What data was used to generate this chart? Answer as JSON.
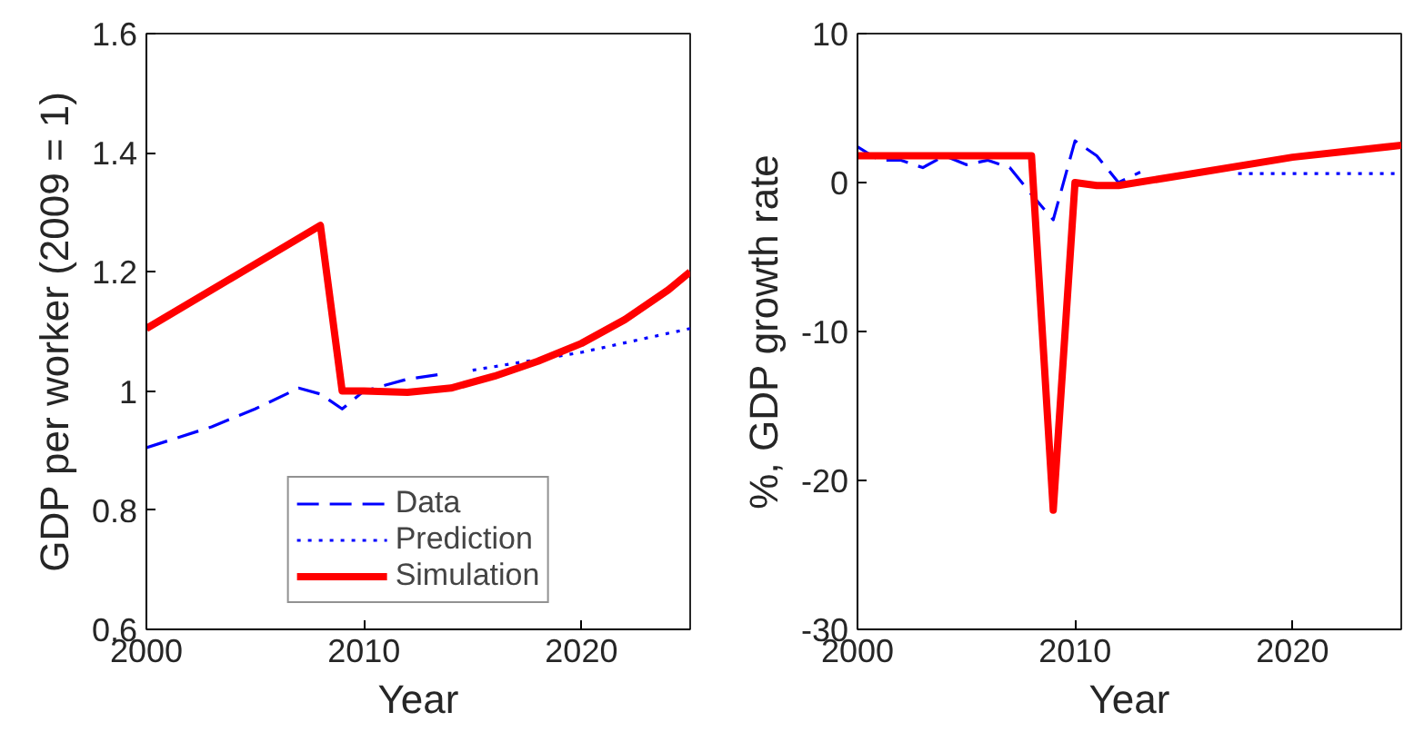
{
  "chart_data": [
    {
      "type": "line",
      "xlabel": "Year",
      "ylabel": "GDP per worker (2009 = 1)",
      "xlim": [
        2000,
        2025
      ],
      "xticks": [
        2000,
        2010,
        2020
      ],
      "ylim": [
        0.6,
        1.6
      ],
      "yticks": [
        {
          "value": 0.6,
          "label": "0.6"
        },
        {
          "value": 0.8,
          "label": "0.8"
        },
        {
          "value": 1,
          "label": "1"
        },
        {
          "value": 1.2,
          "label": "1.2"
        },
        {
          "value": 1.4,
          "label": "1.4"
        },
        {
          "value": 1.6,
          "label": "1.6"
        }
      ],
      "grid": false,
      "legend": "bottom",
      "series": [
        {
          "name": "Data",
          "color": "#0000ff",
          "line_style": "dashed",
          "x": [
            2000,
            2003,
            2005,
            2007,
            2008,
            2009,
            2010,
            2011,
            2012,
            2013.5
          ],
          "values": [
            0.905,
            0.94,
            0.97,
            1.005,
            0.995,
            0.97,
            1.0,
            1.01,
            1.02,
            1.028
          ]
        },
        {
          "name": "Prediction",
          "color": "#0000ff",
          "line_style": "dotted",
          "x": [
            2015,
            2020,
            2025
          ],
          "values": [
            1.035,
            1.065,
            1.105
          ]
        },
        {
          "name": "Simulation",
          "color": "#ff0000",
          "line_style": "solid",
          "x": [
            2000,
            2008,
            2009,
            2010,
            2012,
            2014,
            2016,
            2018,
            2020,
            2022,
            2024,
            2025
          ],
          "values": [
            1.105,
            1.278,
            1.0,
            1.0,
            0.998,
            1.005,
            1.025,
            1.05,
            1.08,
            1.12,
            1.17,
            1.2
          ]
        }
      ]
    },
    {
      "type": "line",
      "xlabel": "Year",
      "ylabel": "%, GDP growth rate",
      "xlim": [
        2000,
        2025
      ],
      "xticks": [
        2000,
        2010,
        2020
      ],
      "ylim": [
        -30,
        10
      ],
      "yticks": [
        -30,
        -20,
        -10,
        0,
        10
      ],
      "grid": false,
      "legend": false,
      "series": [
        {
          "color": "#0000ff",
          "line_style": "dashed",
          "x": [
            2000,
            2001,
            2002,
            2003,
            2004,
            2005,
            2006,
            2007,
            2008,
            2009,
            2010,
            2011,
            2012,
            2013
          ],
          "values": [
            2.4,
            1.5,
            1.5,
            1.0,
            1.8,
            1.2,
            1.5,
            1.0,
            -0.8,
            -2.5,
            2.8,
            1.8,
            0.0,
            0.7
          ]
        },
        {
          "color": "#0000ff",
          "line_style": "dotted",
          "x": [
            2017.5,
            2020,
            2025
          ],
          "values": [
            0.6,
            0.6,
            0.6
          ]
        },
        {
          "color": "#ff0000",
          "line_style": "solid",
          "x": [
            2000,
            2008,
            2009,
            2010,
            2011,
            2012,
            2015,
            2020,
            2025
          ],
          "values": [
            1.8,
            1.8,
            -22,
            0,
            -0.2,
            -0.2,
            0.5,
            1.7,
            2.5
          ]
        }
      ]
    }
  ]
}
